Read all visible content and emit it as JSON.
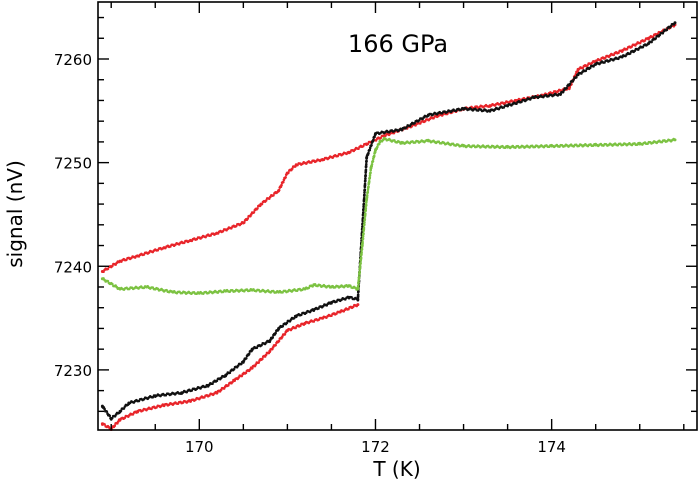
{
  "chart_data": {
    "type": "scatter",
    "title": "",
    "annotation": "166 GPa",
    "xlabel": "T (K)",
    "ylabel": "signal (nV)",
    "xlim": [
      168.85,
      175.65
    ],
    "ylim": [
      7224.2,
      7265.5
    ],
    "x_ticks": [
      170,
      172,
      174
    ],
    "y_ticks": [
      7230,
      7240,
      7250,
      7260
    ],
    "grid": false,
    "legend": "none",
    "series": [
      {
        "color": "#e8252a",
        "x": [
          168.9,
          169.1,
          169.3,
          169.6,
          169.9,
          170.2,
          170.5,
          170.7,
          170.9,
          171.0,
          171.1,
          171.4,
          171.7,
          171.9,
          172.1,
          172.4,
          172.7,
          173.0,
          173.3,
          173.6,
          173.9,
          174.2,
          174.3,
          174.5,
          174.8,
          175.1,
          175.4
        ],
        "y": [
          7239.5,
          7240.5,
          7241.0,
          7241.8,
          7242.5,
          7243.2,
          7244.2,
          7246.0,
          7247.3,
          7249.0,
          7249.8,
          7250.3,
          7251.0,
          7251.8,
          7252.6,
          7253.5,
          7254.5,
          7255.2,
          7255.5,
          7256.0,
          7256.5,
          7257.2,
          7259.0,
          7259.8,
          7260.8,
          7262.0,
          7263.3
        ]
      },
      {
        "color": "#111111",
        "x": [
          168.9,
          169.0,
          169.1,
          169.2,
          169.5,
          169.8,
          170.1,
          170.3,
          170.5,
          170.6,
          170.8,
          170.9,
          171.1,
          171.3,
          171.5,
          171.7,
          171.8,
          171.9,
          172.0,
          172.3,
          172.6,
          173.0,
          173.3,
          173.5,
          173.8,
          174.1,
          174.3,
          174.5,
          174.8,
          175.1,
          175.4
        ],
        "y": [
          7226.5,
          7225.3,
          7226.0,
          7226.8,
          7227.5,
          7227.8,
          7228.5,
          7229.5,
          7230.8,
          7232.0,
          7232.8,
          7234.0,
          7235.2,
          7235.8,
          7236.5,
          7237.0,
          7236.8,
          7250.5,
          7252.8,
          7253.2,
          7254.6,
          7255.2,
          7255.0,
          7255.5,
          7256.3,
          7256.6,
          7258.5,
          7259.5,
          7260.2,
          7261.5,
          7263.5
        ]
      },
      {
        "color": "#e8252a",
        "x": [
          168.9,
          169.0,
          169.1,
          169.3,
          169.6,
          169.9,
          170.2,
          170.4,
          170.6,
          170.8,
          171.0,
          171.2,
          171.4,
          171.6,
          171.8
        ],
        "y": [
          7224.8,
          7224.3,
          7225.2,
          7226.0,
          7226.6,
          7227.0,
          7227.8,
          7229.0,
          7230.2,
          7231.8,
          7233.8,
          7234.5,
          7235.0,
          7235.6,
          7236.3
        ]
      },
      {
        "color": "#7cc242",
        "x": [
          168.9,
          169.1,
          169.4,
          169.7,
          170.0,
          170.3,
          170.6,
          170.9,
          171.2,
          171.3,
          171.5,
          171.7,
          171.8,
          171.85,
          171.9,
          171.95,
          172.0,
          172.05,
          172.1,
          172.3,
          172.6,
          173.0,
          173.5,
          174.0,
          174.5,
          175.0,
          175.4
        ],
        "y": [
          7238.8,
          7237.8,
          7238.0,
          7237.5,
          7237.4,
          7237.6,
          7237.7,
          7237.5,
          7237.8,
          7238.2,
          7238.0,
          7238.1,
          7237.8,
          7242.0,
          7246.5,
          7249.5,
          7251.2,
          7252.0,
          7252.3,
          7251.9,
          7252.1,
          7251.6,
          7251.5,
          7251.6,
          7251.7,
          7251.8,
          7252.2
        ]
      }
    ]
  }
}
